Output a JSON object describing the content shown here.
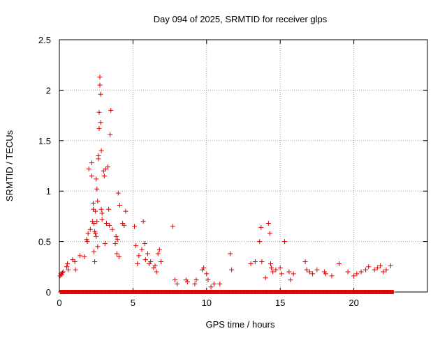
{
  "chart_data": {
    "type": "scatter",
    "title": "Day 094 of 2025, SRMTID for receiver glps",
    "xlabel": "GPS time / hours",
    "ylabel": "SRMTID / TECUs",
    "xlim": [
      0,
      25
    ],
    "ylim": [
      0,
      2.5
    ],
    "xticks": [
      0,
      5,
      10,
      15,
      20
    ],
    "yticks": [
      0,
      0.5,
      1,
      1.5,
      2,
      2.5
    ],
    "xtick_labels": [
      "0",
      "5",
      "10",
      "15",
      "20"
    ],
    "ytick_labels": [
      "0",
      "0.5",
      "1",
      "1.5",
      "2",
      "2.5"
    ],
    "grid": true,
    "marker": "+",
    "series": [
      {
        "name": "SRMTID",
        "color": "#e00000",
        "zero_baseline_range": [
          0.05,
          22.7
        ],
        "points": [
          [
            0.05,
            0.16
          ],
          [
            0.1,
            0.18
          ],
          [
            0.15,
            0.17
          ],
          [
            0.2,
            0.19
          ],
          [
            0.25,
            0.2
          ],
          [
            0.5,
            0.25
          ],
          [
            0.55,
            0.28
          ],
          [
            0.6,
            0.22
          ],
          [
            0.9,
            0.32
          ],
          [
            1.05,
            0.3
          ],
          [
            1.1,
            0.22
          ],
          [
            1.4,
            0.36
          ],
          [
            1.7,
            0.35
          ],
          [
            1.85,
            0.52
          ],
          [
            1.9,
            0.5
          ],
          [
            1.95,
            0.58
          ],
          [
            2.0,
            1.22
          ],
          [
            2.1,
            0.62
          ],
          [
            2.2,
            1.28
          ],
          [
            2.2,
            1.15
          ],
          [
            2.25,
            0.7
          ],
          [
            2.3,
            0.88
          ],
          [
            2.3,
            0.82
          ],
          [
            2.35,
            0.68
          ],
          [
            2.35,
            0.4
          ],
          [
            2.4,
            0.6
          ],
          [
            2.4,
            0.3
          ],
          [
            2.45,
            0.8
          ],
          [
            2.45,
            0.58
          ],
          [
            2.5,
            1.12
          ],
          [
            2.5,
            0.55
          ],
          [
            2.55,
            1.02
          ],
          [
            2.55,
            0.7
          ],
          [
            2.6,
            0.9
          ],
          [
            2.6,
            0.45
          ],
          [
            2.65,
            1.35
          ],
          [
            2.65,
            1.32
          ],
          [
            2.7,
            1.78
          ],
          [
            2.7,
            1.62
          ],
          [
            2.75,
            2.13
          ],
          [
            2.75,
            2.05
          ],
          [
            2.8,
            1.96
          ],
          [
            2.8,
            1.68
          ],
          [
            2.85,
            1.4
          ],
          [
            2.85,
            0.82
          ],
          [
            2.9,
            0.78
          ],
          [
            2.9,
            0.72
          ],
          [
            3.0,
            1.2
          ],
          [
            3.05,
            1.15
          ],
          [
            3.1,
            0.48
          ],
          [
            3.15,
            1.22
          ],
          [
            3.2,
            0.68
          ],
          [
            3.3,
            1.24
          ],
          [
            3.35,
            0.82
          ],
          [
            3.4,
            0.66
          ],
          [
            3.45,
            1.56
          ],
          [
            3.5,
            1.8
          ],
          [
            3.6,
            0.62
          ],
          [
            3.8,
            0.48
          ],
          [
            3.85,
            0.55
          ],
          [
            3.9,
            0.38
          ],
          [
            3.95,
            0.52
          ],
          [
            4.0,
            0.98
          ],
          [
            4.05,
            0.35
          ],
          [
            4.1,
            0.86
          ],
          [
            4.3,
            0.68
          ],
          [
            4.4,
            0.66
          ],
          [
            4.5,
            0.8
          ],
          [
            5.1,
            0.65
          ],
          [
            5.2,
            0.46
          ],
          [
            5.3,
            0.28
          ],
          [
            5.4,
            0.36
          ],
          [
            5.6,
            0.42
          ],
          [
            5.7,
            0.7
          ],
          [
            5.8,
            0.48
          ],
          [
            5.85,
            0.32
          ],
          [
            6.0,
            0.38
          ],
          [
            6.1,
            0.28
          ],
          [
            6.2,
            0.3
          ],
          [
            6.4,
            0.24
          ],
          [
            6.5,
            0.26
          ],
          [
            6.6,
            0.2
          ],
          [
            6.7,
            0.38
          ],
          [
            6.8,
            0.42
          ],
          [
            6.9,
            0.3
          ],
          [
            7.7,
            0.65
          ],
          [
            7.85,
            0.12
          ],
          [
            8.0,
            0.08
          ],
          [
            8.6,
            0.12
          ],
          [
            8.7,
            0.1
          ],
          [
            9.2,
            0.08
          ],
          [
            9.3,
            0.12
          ],
          [
            9.7,
            0.22
          ],
          [
            9.8,
            0.24
          ],
          [
            10.0,
            0.18
          ],
          [
            10.1,
            0.12
          ],
          [
            10.3,
            0.05
          ],
          [
            10.5,
            0.08
          ],
          [
            10.9,
            0.08
          ],
          [
            11.6,
            0.38
          ],
          [
            11.7,
            0.22
          ],
          [
            13.0,
            0.28
          ],
          [
            13.3,
            0.3
          ],
          [
            13.6,
            0.5
          ],
          [
            13.7,
            0.64
          ],
          [
            13.75,
            0.3
          ],
          [
            14.0,
            0.14
          ],
          [
            14.2,
            0.68
          ],
          [
            14.3,
            0.58
          ],
          [
            14.35,
            0.28
          ],
          [
            14.4,
            0.24
          ],
          [
            14.5,
            0.2
          ],
          [
            14.7,
            0.22
          ],
          [
            15.0,
            0.24
          ],
          [
            15.1,
            0.18
          ],
          [
            15.3,
            0.5
          ],
          [
            15.6,
            0.2
          ],
          [
            15.7,
            0.12
          ],
          [
            15.9,
            0.18
          ],
          [
            16.7,
            0.3
          ],
          [
            16.8,
            0.22
          ],
          [
            17.0,
            0.2
          ],
          [
            17.2,
            0.18
          ],
          [
            17.5,
            0.22
          ],
          [
            18.0,
            0.2
          ],
          [
            18.1,
            0.18
          ],
          [
            18.5,
            0.16
          ],
          [
            19.0,
            0.28
          ],
          [
            19.6,
            0.2
          ],
          [
            20.0,
            0.16
          ],
          [
            20.2,
            0.18
          ],
          [
            20.5,
            0.2
          ],
          [
            20.8,
            0.22
          ],
          [
            21.0,
            0.25
          ],
          [
            21.4,
            0.22
          ],
          [
            21.6,
            0.24
          ],
          [
            21.8,
            0.26
          ],
          [
            22.0,
            0.2
          ],
          [
            22.2,
            0.22
          ],
          [
            22.5,
            0.26
          ]
        ]
      }
    ]
  }
}
